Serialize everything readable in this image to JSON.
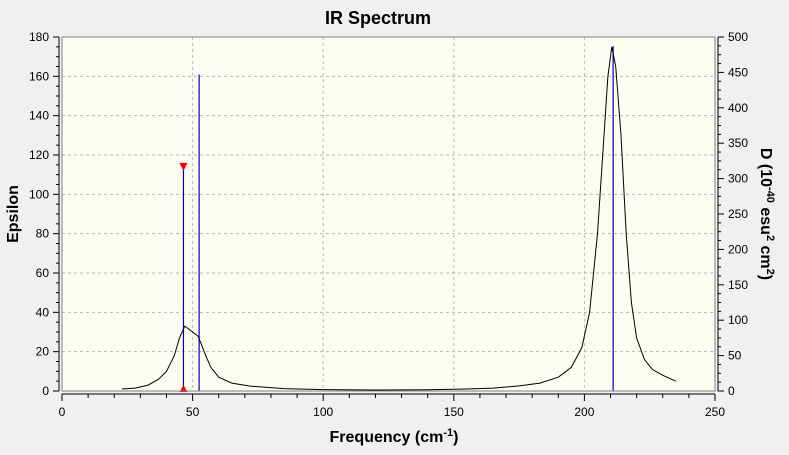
{
  "chart_data": {
    "type": "line",
    "title": "IR Spectrum",
    "xlabel": "Frequency (cm",
    "xlabel_sup": "-1",
    "xlabel_end": ")",
    "ylabel": "Epsilon",
    "y2label_parts": [
      "D (10",
      "-40",
      " esu",
      "2",
      " cm",
      "2",
      ")"
    ],
    "xlim": [
      0,
      250
    ],
    "ylim": [
      0,
      180
    ],
    "y2lim": [
      0,
      500
    ],
    "x_ticks": [
      0,
      50,
      100,
      150,
      200,
      250
    ],
    "y_ticks": [
      0,
      20,
      40,
      60,
      80,
      100,
      120,
      140,
      160,
      180
    ],
    "y2_ticks": [
      0,
      50,
      100,
      150,
      200,
      250,
      300,
      350,
      400,
      450,
      500
    ],
    "grid": true,
    "spectrum_color": "#000000",
    "stick_color": "#0000cc",
    "marker_color": "#ee0000",
    "background_color": "#fcfcf0",
    "spectrum": [
      [
        23,
        1.0
      ],
      [
        28,
        1.5
      ],
      [
        33,
        3.0
      ],
      [
        37,
        6.0
      ],
      [
        40,
        10.0
      ],
      [
        43,
        18.0
      ],
      [
        45,
        27.0
      ],
      [
        47,
        33.0
      ],
      [
        49,
        31.0
      ],
      [
        51,
        29.0
      ],
      [
        52,
        28.0
      ],
      [
        53,
        25.0
      ],
      [
        55,
        18.0
      ],
      [
        57,
        12.0
      ],
      [
        60,
        7.0
      ],
      [
        65,
        4.0
      ],
      [
        72,
        2.5
      ],
      [
        85,
        1.2
      ],
      [
        100,
        0.7
      ],
      [
        120,
        0.5
      ],
      [
        140,
        0.6
      ],
      [
        155,
        1.0
      ],
      [
        165,
        1.5
      ],
      [
        175,
        2.6
      ],
      [
        183,
        4.0
      ],
      [
        190,
        7.0
      ],
      [
        195,
        12.0
      ],
      [
        199,
        22.0
      ],
      [
        202,
        40.0
      ],
      [
        205,
        80.0
      ],
      [
        207,
        120.0
      ],
      [
        209,
        160.0
      ],
      [
        210.5,
        175.0
      ],
      [
        212,
        165.0
      ],
      [
        214,
        130.0
      ],
      [
        216,
        80.0
      ],
      [
        218,
        45.0
      ],
      [
        220,
        27.0
      ],
      [
        223,
        16.0
      ],
      [
        226,
        11.0
      ],
      [
        230,
        8.0
      ],
      [
        235,
        5.0
      ]
    ],
    "sticks": [
      {
        "x": 46.5,
        "d": 318
      },
      {
        "x": 52.5,
        "d": 447
      },
      {
        "x": 211,
        "d": 487
      }
    ],
    "marker_x": 46.5
  }
}
